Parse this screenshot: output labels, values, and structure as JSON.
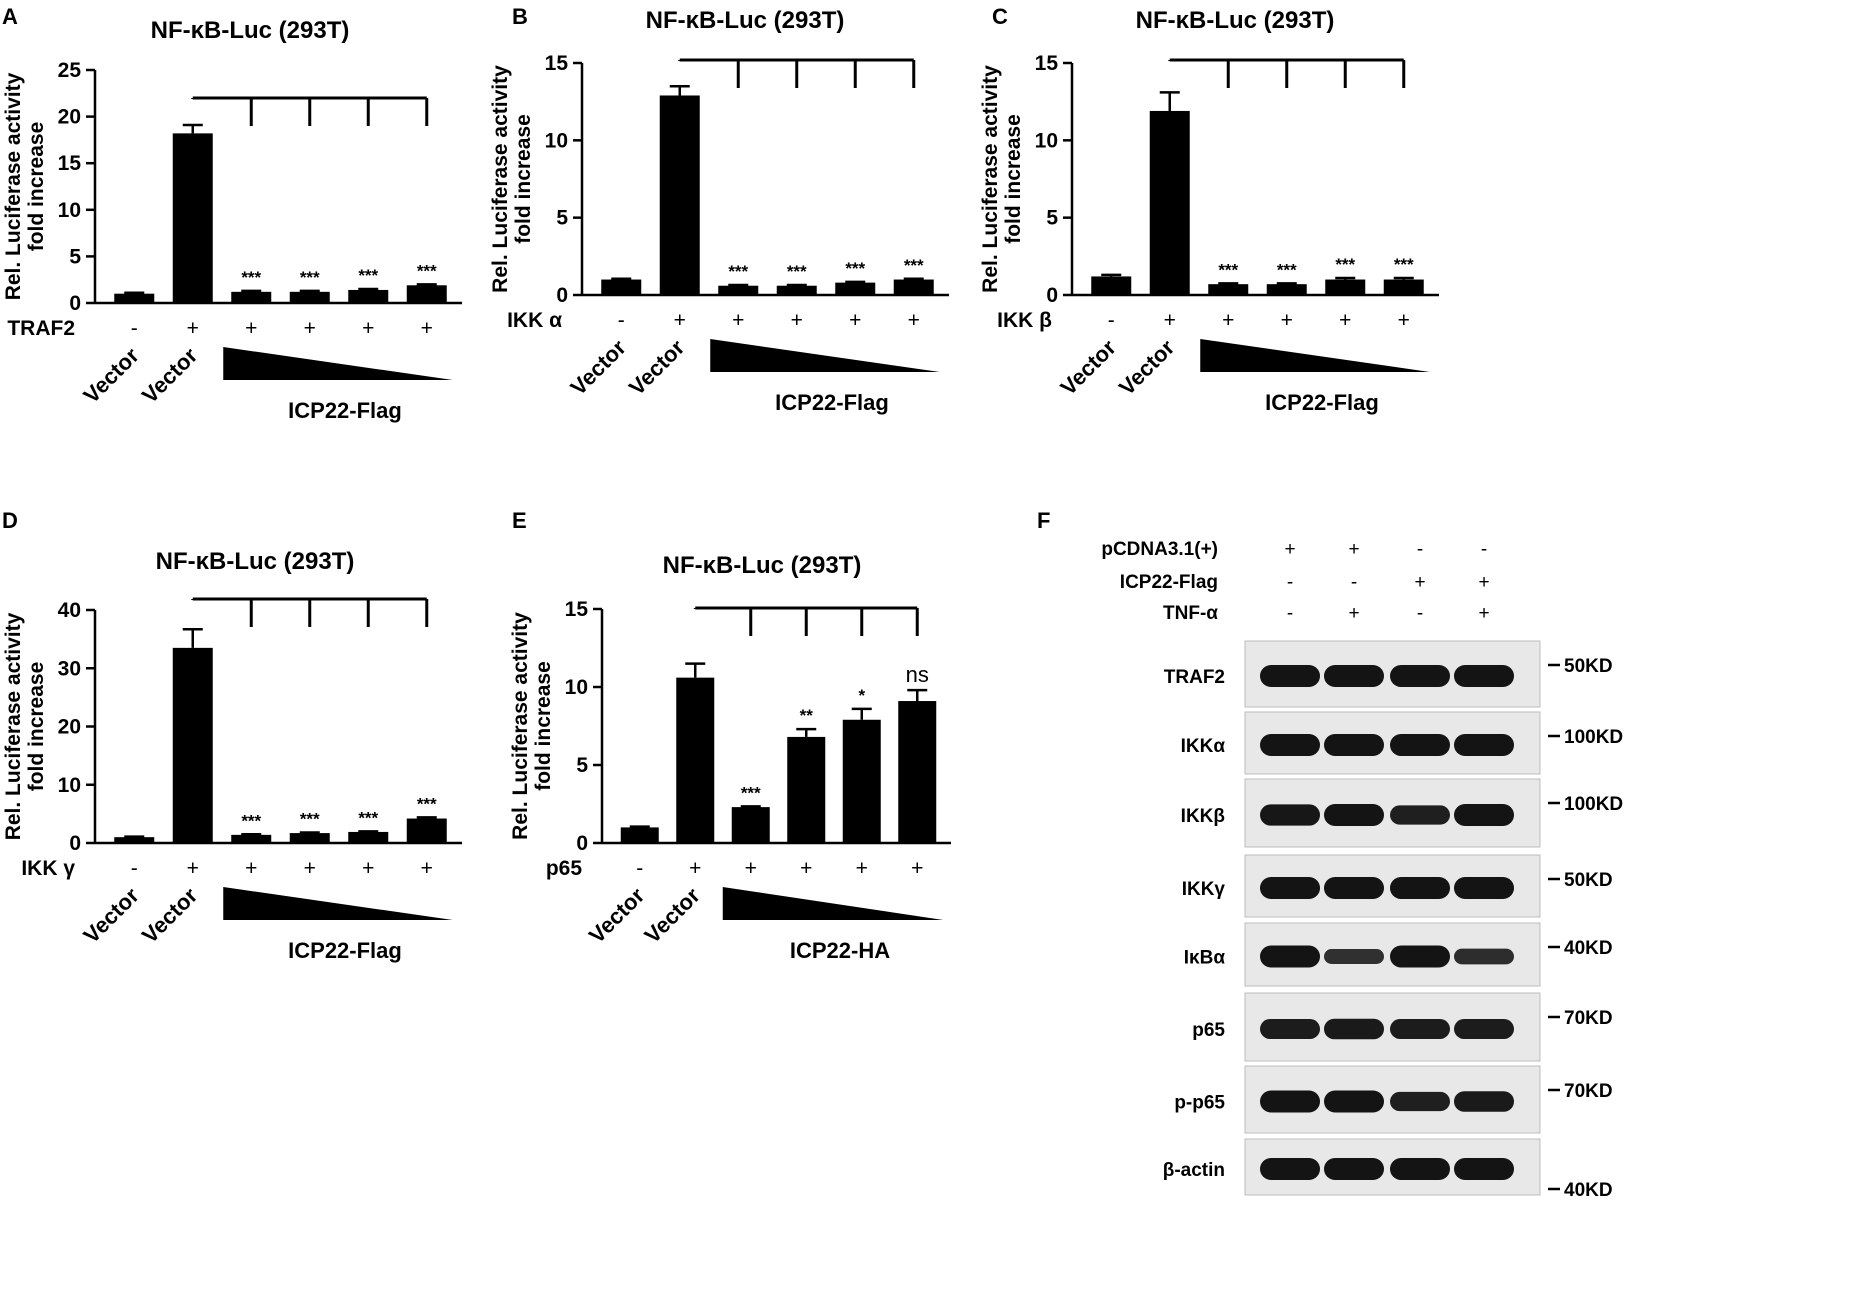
{
  "panels": [
    {
      "letter": "A",
      "title": "NF-κB-Luc (293T)",
      "ylabel_lines": [
        "Rel. Luciferase activity",
        "fold increase"
      ],
      "ylim": [
        0,
        25
      ],
      "yticks": [
        0,
        5,
        10,
        15,
        20,
        25
      ],
      "factor_label": "TRAF2",
      "signs": [
        "-",
        "+",
        "+",
        "+",
        "+",
        "+"
      ],
      "vector_labels": [
        "Vector",
        "Vector"
      ],
      "gradient_label": "ICP22-Flag"
    },
    {
      "letter": "B",
      "title": "NF-κB-Luc (293T)",
      "ylabel_lines": [
        "Rel. Luciferase activity",
        "fold increase"
      ],
      "ylim": [
        0,
        15
      ],
      "yticks": [
        0,
        5,
        10,
        15
      ],
      "factor_label": "IKK α",
      "signs": [
        "-",
        "+",
        "+",
        "+",
        "+",
        "+"
      ],
      "vector_labels": [
        "Vector",
        "Vector"
      ],
      "gradient_label": "ICP22-Flag"
    },
    {
      "letter": "C",
      "title": "NF-κB-Luc (293T)",
      "ylabel_lines": [
        "Rel. Luciferase activity",
        "fold increase"
      ],
      "ylim": [
        0,
        15
      ],
      "yticks": [
        0,
        5,
        10,
        15
      ],
      "factor_label": "IKK β",
      "signs": [
        "-",
        "+",
        "+",
        "+",
        "+",
        "+"
      ],
      "vector_labels": [
        "Vector",
        "Vector"
      ],
      "gradient_label": "ICP22-Flag"
    },
    {
      "letter": "D",
      "title": "NF-κB-Luc (293T)",
      "ylabel_lines": [
        "Rel. Luciferase activity",
        "fold increase"
      ],
      "ylim": [
        0,
        40
      ],
      "yticks": [
        0,
        10,
        20,
        30,
        40
      ],
      "factor_label": "IKK γ",
      "signs": [
        "-",
        "+",
        "+",
        "+",
        "+",
        "+"
      ],
      "vector_labels": [
        "Vector",
        "Vector"
      ],
      "gradient_label": "ICP22-Flag"
    },
    {
      "letter": "E",
      "title": "NF-κB-Luc (293T)",
      "ylabel_lines": [
        "Rel. Luciferase activity",
        "fold increase"
      ],
      "ylim": [
        0,
        15
      ],
      "yticks": [
        0,
        5,
        10,
        15
      ],
      "factor_label": "p65",
      "signs": [
        "-",
        "+",
        "+",
        "+",
        "+",
        "+"
      ],
      "vector_labels": [
        "Vector",
        "Vector"
      ],
      "gradient_label": "ICP22-HA"
    }
  ],
  "chart_data": [
    {
      "type": "bar",
      "panel": "A",
      "values": [
        1.0,
        18.2,
        1.2,
        1.2,
        1.4,
        1.9
      ],
      "errors": [
        0.1,
        0.9,
        0.1,
        0.1,
        0.1,
        0.1
      ],
      "significance": [
        "",
        "",
        "***",
        "***",
        "***",
        "***"
      ]
    },
    {
      "type": "bar",
      "panel": "B",
      "values": [
        1.0,
        12.9,
        0.6,
        0.6,
        0.8,
        1.0
      ],
      "errors": [
        0.05,
        0.6,
        0.05,
        0.05,
        0.05,
        0.05
      ],
      "significance": [
        "",
        "",
        "***",
        "***",
        "***",
        "***"
      ]
    },
    {
      "type": "bar",
      "panel": "C",
      "values": [
        1.2,
        11.9,
        0.7,
        0.7,
        1.0,
        1.0
      ],
      "errors": [
        0.1,
        1.2,
        0.05,
        0.05,
        0.1,
        0.1
      ],
      "significance": [
        "",
        "",
        "***",
        "***",
        "***",
        "***"
      ]
    },
    {
      "type": "bar",
      "panel": "D",
      "values": [
        1.0,
        33.5,
        1.4,
        1.7,
        1.9,
        4.2
      ],
      "errors": [
        0.1,
        3.2,
        0.1,
        0.1,
        0.1,
        0.2
      ],
      "significance": [
        "",
        "",
        "***",
        "***",
        "***",
        "***"
      ]
    },
    {
      "type": "bar",
      "panel": "E",
      "values": [
        1.0,
        10.6,
        2.3,
        6.8,
        7.9,
        9.1
      ],
      "errors": [
        0.05,
        0.9,
        0.05,
        0.5,
        0.7,
        0.7
      ],
      "significance": [
        "",
        "",
        "***",
        "**",
        "*",
        "ns"
      ]
    }
  ],
  "blot": {
    "letter": "F",
    "conditions": [
      {
        "label": "pCDNA3.1(+)",
        "signs": [
          "+",
          "+",
          "-",
          "-"
        ]
      },
      {
        "label": "ICP22-Flag",
        "signs": [
          "-",
          "-",
          "+",
          "+"
        ]
      },
      {
        "label": "TNF-α",
        "signs": [
          "-",
          "+",
          "-",
          "+"
        ]
      }
    ],
    "rows": [
      {
        "label": "TRAF2",
        "marker": "50KD",
        "intensities": [
          1.0,
          1.0,
          1.0,
          1.0
        ]
      },
      {
        "label": "IKKα",
        "marker": "100KD",
        "intensities": [
          1.0,
          1.0,
          1.0,
          1.0
        ]
      },
      {
        "label": "IKKβ",
        "marker": "100KD",
        "intensities": [
          0.95,
          1.0,
          0.8,
          1.0
        ]
      },
      {
        "label": "IKKγ",
        "marker": "50KD",
        "intensities": [
          1.0,
          1.0,
          1.0,
          1.0
        ]
      },
      {
        "label": "IκBα",
        "marker": "40KD",
        "intensities": [
          1.0,
          0.5,
          1.0,
          0.55
        ]
      },
      {
        "label": "p65",
        "marker": "70KD",
        "intensities": [
          0.85,
          0.9,
          0.85,
          0.85
        ]
      },
      {
        "label": "p-p65",
        "marker": "70KD",
        "intensities": [
          1.0,
          1.0,
          0.8,
          0.9
        ]
      },
      {
        "label": "β-actin",
        "marker": "40KD",
        "intensities": [
          1.0,
          1.0,
          1.0,
          1.0
        ]
      }
    ]
  }
}
